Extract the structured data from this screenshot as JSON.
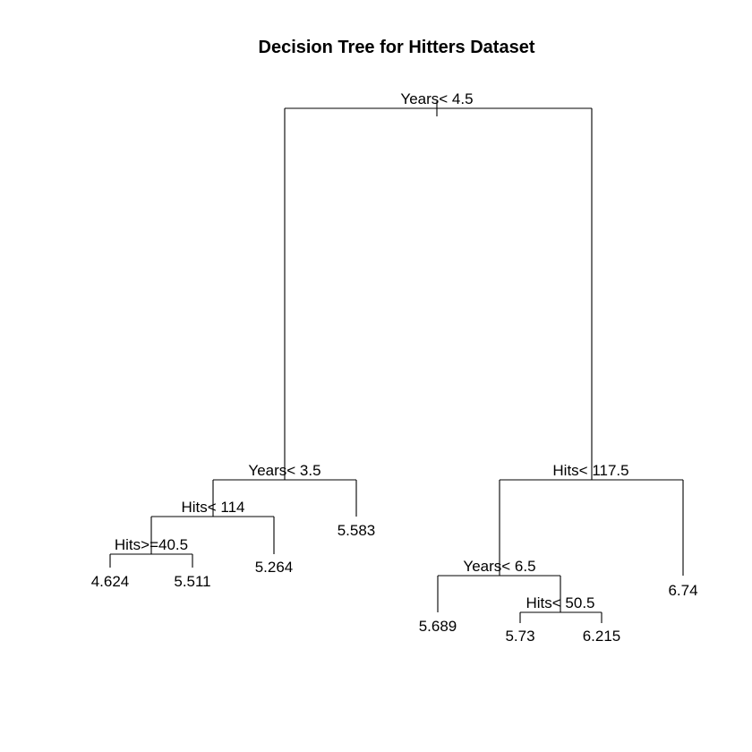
{
  "figure": {
    "title": "Decision Tree for Hitters Dataset",
    "type": "regression tree",
    "background": "#ffffff",
    "line_color": "#000000"
  },
  "tree": {
    "root": {
      "split": "Years< 4.5",
      "left": {
        "split": "Years< 3.5",
        "left": {
          "split": "Hits< 114",
          "left": {
            "split": "Hits>=40.5",
            "left": {
              "leaf": "4.624"
            },
            "right": {
              "leaf": "5.511"
            }
          },
          "right": {
            "leaf": "5.264"
          }
        },
        "right": {
          "leaf": "5.583"
        }
      },
      "right": {
        "split": "Hits< 117.5",
        "left": {
          "split": "Years< 6.5",
          "left": {
            "leaf": "5.689"
          },
          "right": {
            "split": "Hits< 50.5",
            "left": {
              "leaf": "5.73"
            },
            "right": {
              "leaf": "6.215"
            }
          }
        },
        "right": {
          "leaf": "6.74"
        }
      }
    }
  }
}
